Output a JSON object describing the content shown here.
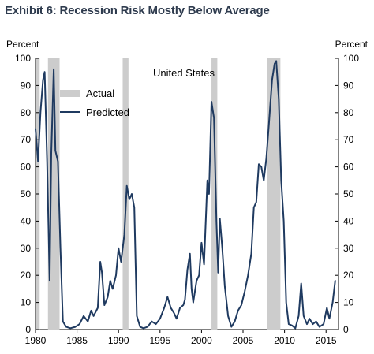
{
  "chart_data": {
    "type": "line",
    "title": "Exhibit 6: Recession Risk Mostly Below Average",
    "subtitle": "United States",
    "ylabel_left": "Percent",
    "ylabel_right": "Percent",
    "xlim": [
      1980,
      2016.5
    ],
    "ylim": [
      0,
      100
    ],
    "x_ticks": [
      1980,
      1985,
      1990,
      1995,
      2000,
      2005,
      2010,
      2015
    ],
    "y_ticks": [
      0,
      10,
      20,
      30,
      40,
      50,
      60,
      70,
      80,
      90,
      100
    ],
    "legend": {
      "placement": "upper-left",
      "entries": [
        "Actual",
        "Predicted"
      ]
    },
    "series": [
      {
        "name": "Actual",
        "kind": "shaded-periods",
        "color": "#cccccc",
        "periods": [
          [
            1980.0,
            1980.5
          ],
          [
            1981.5,
            1982.9
          ],
          [
            1990.5,
            1991.2
          ],
          [
            2001.2,
            2001.9
          ],
          [
            2007.9,
            2009.5
          ]
        ]
      },
      {
        "name": "Predicted",
        "kind": "line",
        "color": "#1f3a60",
        "points": [
          [
            1980.0,
            74
          ],
          [
            1980.3,
            62
          ],
          [
            1980.6,
            80
          ],
          [
            1980.9,
            92
          ],
          [
            1981.1,
            95
          ],
          [
            1981.4,
            62
          ],
          [
            1981.7,
            18
          ],
          [
            1981.9,
            65
          ],
          [
            1982.2,
            96
          ],
          [
            1982.4,
            66
          ],
          [
            1982.7,
            62
          ],
          [
            1983.0,
            30
          ],
          [
            1983.3,
            3
          ],
          [
            1983.7,
            1
          ],
          [
            1984.2,
            0.5
          ],
          [
            1984.8,
            1
          ],
          [
            1985.3,
            2
          ],
          [
            1985.8,
            5
          ],
          [
            1986.3,
            3
          ],
          [
            1986.7,
            7
          ],
          [
            1987.0,
            5
          ],
          [
            1987.5,
            8
          ],
          [
            1987.8,
            25
          ],
          [
            1988.0,
            21
          ],
          [
            1988.3,
            9
          ],
          [
            1988.7,
            12
          ],
          [
            1989.0,
            18
          ],
          [
            1989.3,
            15
          ],
          [
            1989.7,
            20
          ],
          [
            1990.0,
            30
          ],
          [
            1990.3,
            25
          ],
          [
            1990.7,
            35
          ],
          [
            1991.0,
            53
          ],
          [
            1991.3,
            48
          ],
          [
            1991.6,
            50
          ],
          [
            1991.9,
            45
          ],
          [
            1992.2,
            5
          ],
          [
            1992.6,
            1
          ],
          [
            1993.0,
            0.5
          ],
          [
            1993.5,
            1
          ],
          [
            1994.0,
            3
          ],
          [
            1994.5,
            2
          ],
          [
            1995.0,
            4
          ],
          [
            1995.5,
            8
          ],
          [
            1995.9,
            12
          ],
          [
            1996.3,
            8
          ],
          [
            1996.7,
            6
          ],
          [
            1997.0,
            4
          ],
          [
            1997.4,
            8
          ],
          [
            1997.8,
            9
          ],
          [
            1998.0,
            11
          ],
          [
            1998.3,
            22
          ],
          [
            1998.6,
            28
          ],
          [
            1998.8,
            15
          ],
          [
            1999.0,
            10
          ],
          [
            1999.4,
            18
          ],
          [
            1999.7,
            20
          ],
          [
            2000.0,
            32
          ],
          [
            2000.3,
            24
          ],
          [
            2000.7,
            55
          ],
          [
            2000.9,
            50
          ],
          [
            2001.2,
            84
          ],
          [
            2001.5,
            78
          ],
          [
            2001.8,
            40
          ],
          [
            2002.0,
            21
          ],
          [
            2002.2,
            41
          ],
          [
            2002.5,
            30
          ],
          [
            2002.8,
            16
          ],
          [
            2003.2,
            5
          ],
          [
            2003.6,
            1
          ],
          [
            2004.0,
            3
          ],
          [
            2004.4,
            7
          ],
          [
            2004.8,
            9
          ],
          [
            2005.2,
            14
          ],
          [
            2005.6,
            20
          ],
          [
            2006.0,
            28
          ],
          [
            2006.3,
            45
          ],
          [
            2006.6,
            47
          ],
          [
            2006.9,
            61
          ],
          [
            2007.2,
            60
          ],
          [
            2007.5,
            55
          ],
          [
            2007.8,
            63
          ],
          [
            2008.1,
            75
          ],
          [
            2008.5,
            92
          ],
          [
            2008.8,
            98
          ],
          [
            2009.0,
            99
          ],
          [
            2009.3,
            85
          ],
          [
            2009.6,
            55
          ],
          [
            2009.9,
            40
          ],
          [
            2010.2,
            10
          ],
          [
            2010.5,
            2
          ],
          [
            2010.9,
            1.5
          ],
          [
            2011.3,
            0.5
          ],
          [
            2011.7,
            5
          ],
          [
            2012.0,
            17
          ],
          [
            2012.3,
            5
          ],
          [
            2012.7,
            2
          ],
          [
            2013.0,
            4
          ],
          [
            2013.4,
            2
          ],
          [
            2013.8,
            3
          ],
          [
            2014.2,
            1
          ],
          [
            2014.7,
            2
          ],
          [
            2015.1,
            8
          ],
          [
            2015.4,
            4
          ],
          [
            2015.8,
            10
          ],
          [
            2016.1,
            18
          ]
        ]
      }
    ]
  }
}
